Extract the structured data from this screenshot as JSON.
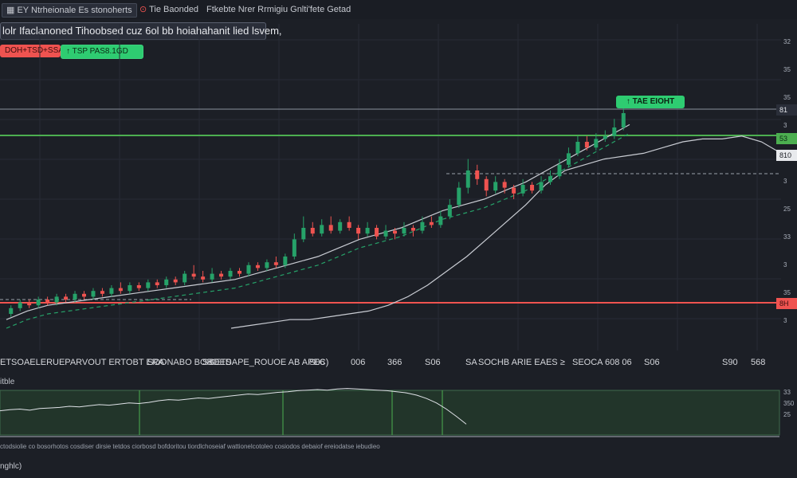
{
  "topbar": {
    "tabs": [
      {
        "label": "EY Ntrheionale Es stonoherts",
        "icon": "chart-icon"
      },
      {
        "label": "Tie Baonded",
        "icon": "bell-icon"
      },
      {
        "label": "Ftkebte Nrer Rrmigiu Gnlti'fete Getad",
        "icon": "settings-icon"
      }
    ]
  },
  "banner": {
    "text": "lolr Ifaclanoned Tihoobsed cuz 6ol bb hoiahahanit lied lsvem,"
  },
  "badges": {
    "sell": "DOH+TSD+SSA",
    "buy": "TSP PAS8.1GD"
  },
  "take_profit": {
    "label": "TAE EIOHT"
  },
  "levels": {
    "resistance_label": "81",
    "support_label": "53",
    "mid_label": "810",
    "red_line_label": "8H"
  },
  "price_axis": [
    "32",
    "35",
    "35",
    "3",
    "34",
    "3",
    "25",
    "33",
    "3",
    "35",
    "3"
  ],
  "ticker": {
    "segments": [
      "ETSOAELERUEPARVOUT ERTOBT ERA·",
      "SOONABO BORDED",
      "S≤",
      "SETSAPE_ROUOE AB APEC)",
      "S06",
      "006",
      "366",
      "S06",
      "SA",
      "SOCHB ARIE EAES ≥",
      "SEOCA 608 06",
      "S06",
      "S90",
      "568"
    ]
  },
  "sub_chart": {
    "header": "itble",
    "right_labels": [
      "33",
      "350",
      "25"
    ],
    "bottom_text": "ctodsiolie co bosorhotos cosdiser dirsie tetdos ciorbosd bofdoritou tiordlchoseiaf wattionelcotoleo cosiodos debaiof ereiodatse iebudieo",
    "footer": "nghlc)"
  },
  "colors": {
    "background": "#1c1f26",
    "up": "#26a269",
    "down": "#ef5350",
    "support": "#ef5350",
    "resistance": "#4caf50",
    "ma": "#c9ccd3"
  },
  "candles": [
    {
      "o": 10,
      "c": 12,
      "h": 13,
      "l": 9
    },
    {
      "o": 12,
      "c": 14,
      "h": 15,
      "l": 11
    },
    {
      "o": 14,
      "c": 13,
      "h": 15,
      "l": 12
    },
    {
      "o": 13,
      "c": 15,
      "h": 16,
      "l": 12
    },
    {
      "o": 15,
      "c": 14,
      "h": 16,
      "l": 13
    },
    {
      "o": 14,
      "c": 16,
      "h": 17,
      "l": 13
    },
    {
      "o": 16,
      "c": 15,
      "h": 17,
      "l": 14
    },
    {
      "o": 15,
      "c": 17,
      "h": 18,
      "l": 14
    },
    {
      "o": 17,
      "c": 16,
      "h": 18,
      "l": 15
    },
    {
      "o": 16,
      "c": 18,
      "h": 19,
      "l": 15
    },
    {
      "o": 18,
      "c": 17,
      "h": 19,
      "l": 16
    },
    {
      "o": 17,
      "c": 19,
      "h": 20,
      "l": 16
    },
    {
      "o": 19,
      "c": 18,
      "h": 21,
      "l": 17
    },
    {
      "o": 18,
      "c": 20,
      "h": 21,
      "l": 17
    },
    {
      "o": 20,
      "c": 19,
      "h": 21,
      "l": 18
    },
    {
      "o": 19,
      "c": 21,
      "h": 22,
      "l": 18
    },
    {
      "o": 21,
      "c": 20,
      "h": 22,
      "l": 19
    },
    {
      "o": 20,
      "c": 22,
      "h": 23,
      "l": 19
    },
    {
      "o": 22,
      "c": 21,
      "h": 23,
      "l": 20
    },
    {
      "o": 21,
      "c": 24,
      "h": 25,
      "l": 20
    },
    {
      "o": 24,
      "c": 23,
      "h": 27,
      "l": 22
    },
    {
      "o": 23,
      "c": 22,
      "h": 25,
      "l": 21
    },
    {
      "o": 22,
      "c": 24,
      "h": 26,
      "l": 21
    },
    {
      "o": 24,
      "c": 23,
      "h": 25,
      "l": 22
    },
    {
      "o": 23,
      "c": 25,
      "h": 26,
      "l": 22
    },
    {
      "o": 25,
      "c": 24,
      "h": 26,
      "l": 23
    },
    {
      "o": 24,
      "c": 27,
      "h": 28,
      "l": 23
    },
    {
      "o": 27,
      "c": 26,
      "h": 28,
      "l": 25
    },
    {
      "o": 26,
      "c": 28,
      "h": 29,
      "l": 25
    },
    {
      "o": 28,
      "c": 27,
      "h": 30,
      "l": 26
    },
    {
      "o": 27,
      "c": 30,
      "h": 31,
      "l": 26
    },
    {
      "o": 30,
      "c": 36,
      "h": 38,
      "l": 29
    },
    {
      "o": 36,
      "c": 40,
      "h": 44,
      "l": 35
    },
    {
      "o": 40,
      "c": 38,
      "h": 42,
      "l": 37
    },
    {
      "o": 38,
      "c": 41,
      "h": 43,
      "l": 37
    },
    {
      "o": 41,
      "c": 39,
      "h": 44,
      "l": 38
    },
    {
      "o": 39,
      "c": 42,
      "h": 43,
      "l": 38
    },
    {
      "o": 42,
      "c": 40,
      "h": 44,
      "l": 39
    },
    {
      "o": 40,
      "c": 38,
      "h": 41,
      "l": 36
    },
    {
      "o": 38,
      "c": 40,
      "h": 42,
      "l": 37
    },
    {
      "o": 40,
      "c": 37,
      "h": 41,
      "l": 36
    },
    {
      "o": 37,
      "c": 39,
      "h": 41,
      "l": 36
    },
    {
      "o": 39,
      "c": 38,
      "h": 40,
      "l": 36
    },
    {
      "o": 38,
      "c": 40,
      "h": 42,
      "l": 37
    },
    {
      "o": 40,
      "c": 39,
      "h": 41,
      "l": 37
    },
    {
      "o": 39,
      "c": 42,
      "h": 44,
      "l": 38
    },
    {
      "o": 42,
      "c": 41,
      "h": 44,
      "l": 40
    },
    {
      "o": 41,
      "c": 44,
      "h": 46,
      "l": 40
    },
    {
      "o": 44,
      "c": 48,
      "h": 50,
      "l": 43
    },
    {
      "o": 48,
      "c": 54,
      "h": 56,
      "l": 47
    },
    {
      "o": 54,
      "c": 60,
      "h": 64,
      "l": 52
    },
    {
      "o": 60,
      "c": 57,
      "h": 62,
      "l": 55
    },
    {
      "o": 57,
      "c": 53,
      "h": 58,
      "l": 51
    },
    {
      "o": 53,
      "c": 56,
      "h": 58,
      "l": 52
    },
    {
      "o": 56,
      "c": 54,
      "h": 57,
      "l": 52
    },
    {
      "o": 54,
      "c": 52,
      "h": 55,
      "l": 50
    },
    {
      "o": 52,
      "c": 55,
      "h": 57,
      "l": 51
    },
    {
      "o": 55,
      "c": 53,
      "h": 56,
      "l": 52
    },
    {
      "o": 53,
      "c": 56,
      "h": 58,
      "l": 52
    },
    {
      "o": 56,
      "c": 58,
      "h": 60,
      "l": 55
    },
    {
      "o": 58,
      "c": 62,
      "h": 64,
      "l": 57
    },
    {
      "o": 62,
      "c": 66,
      "h": 68,
      "l": 61
    },
    {
      "o": 66,
      "c": 70,
      "h": 72,
      "l": 65
    },
    {
      "o": 70,
      "c": 68,
      "h": 72,
      "l": 67
    },
    {
      "o": 68,
      "c": 71,
      "h": 73,
      "l": 67
    },
    {
      "o": 71,
      "c": 72,
      "h": 74,
      "l": 70
    },
    {
      "o": 72,
      "c": 75,
      "h": 78,
      "l": 71
    },
    {
      "o": 75,
      "c": 80,
      "h": 84,
      "l": 74
    }
  ],
  "ma1": [
    8,
    11,
    13,
    14,
    15,
    16,
    17,
    18,
    19,
    20,
    21,
    22,
    24,
    26,
    28,
    30,
    33,
    36,
    38,
    40,
    43,
    46,
    48,
    50,
    53,
    56,
    60,
    64,
    68,
    72,
    76
  ],
  "ma2": [
    5,
    6,
    7,
    8,
    8,
    9,
    10,
    11,
    13,
    16,
    20,
    25,
    30,
    36,
    42,
    48,
    55,
    60,
    62,
    64,
    65,
    66,
    68,
    70,
    71,
    71,
    72,
    70,
    66
  ],
  "sub_series": [
    52,
    54,
    55,
    53,
    56,
    57,
    58,
    60,
    59,
    61,
    63,
    62,
    64,
    66,
    65,
    67,
    70,
    72,
    71,
    73,
    75,
    74,
    76,
    78,
    80,
    82,
    81,
    83,
    85,
    86,
    88,
    89,
    90,
    89,
    91,
    92,
    91,
    90,
    89,
    88,
    86,
    84,
    80,
    74,
    66,
    55,
    42,
    28
  ]
}
